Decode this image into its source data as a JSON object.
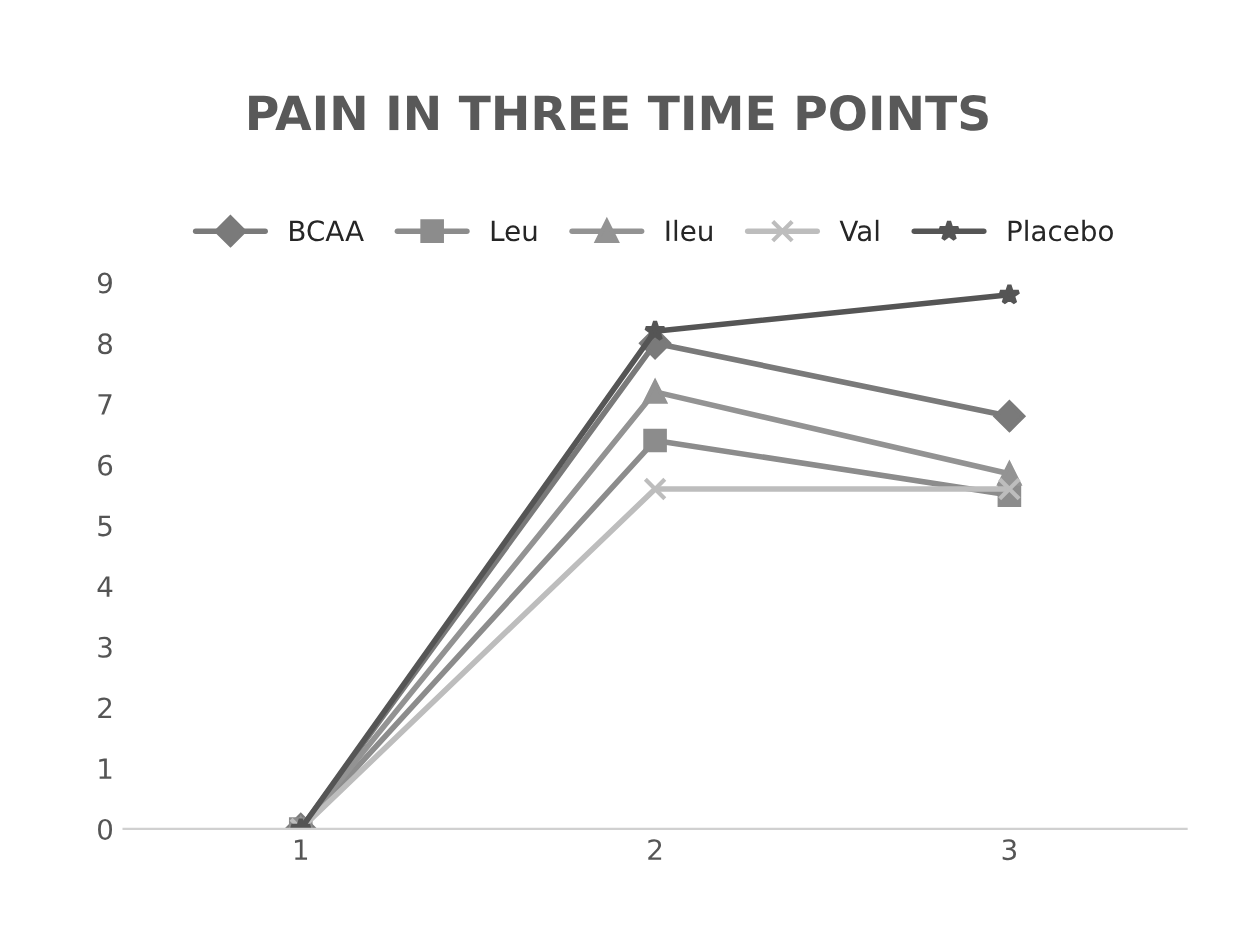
{
  "chart_data": {
    "type": "line",
    "title": "PAIN IN THREE TIME POINTS",
    "categories": [
      "1",
      "2",
      "3"
    ],
    "series": [
      {
        "name": "BCAA",
        "color": "#7a7a7a",
        "marker": "diamond",
        "values": [
          0,
          8.0,
          6.8
        ]
      },
      {
        "name": "Leu",
        "color": "#8c8c8c",
        "marker": "square",
        "values": [
          0,
          6.4,
          5.5
        ]
      },
      {
        "name": "Ileu",
        "color": "#939393",
        "marker": "triangle",
        "values": [
          0,
          7.2,
          5.85
        ]
      },
      {
        "name": "Val",
        "color": "#bdbdbd",
        "marker": "cross",
        "values": [
          0,
          5.6,
          5.6
        ]
      },
      {
        "name": "Placebo",
        "color": "#555555",
        "marker": "star",
        "values": [
          0,
          8.2,
          8.8
        ]
      }
    ],
    "ylim": [
      0,
      9
    ],
    "yticks": [
      0,
      1,
      2,
      3,
      4,
      5,
      6,
      7,
      8,
      9
    ],
    "grid": false,
    "legend": "top",
    "line_style": "solid"
  }
}
